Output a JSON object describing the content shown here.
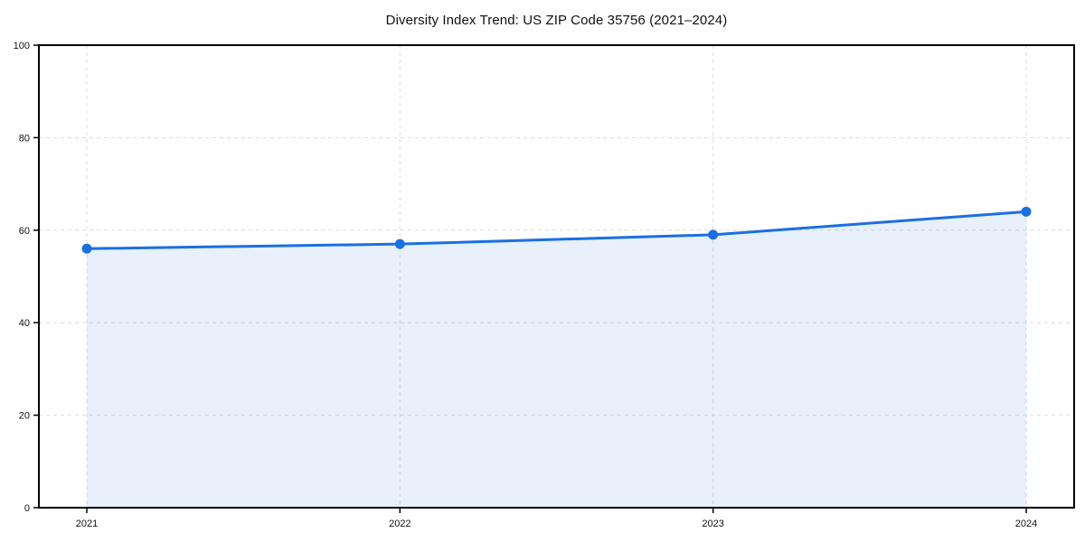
{
  "chart_data": {
    "type": "area",
    "title": "Diversity Index Trend: US ZIP Code 35756 (2021–2024)",
    "categories": [
      "2021",
      "2022",
      "2023",
      "2024"
    ],
    "values": [
      56,
      57,
      59,
      64
    ],
    "xlabel": "",
    "ylabel": "",
    "ylim": [
      0,
      100
    ],
    "yticks": [
      0,
      20,
      40,
      60,
      80,
      100
    ],
    "grid": true,
    "grid_style": "dashed",
    "legend_position": "none",
    "colors": {
      "line": "#1a6fe3",
      "marker": "#1a6fe3",
      "fill": "#1a6fe3",
      "fill_opacity": 0.1,
      "grid": "#dcdcdc",
      "axis": "#000000",
      "tick_text": "#111111",
      "background": "#ffffff"
    }
  }
}
